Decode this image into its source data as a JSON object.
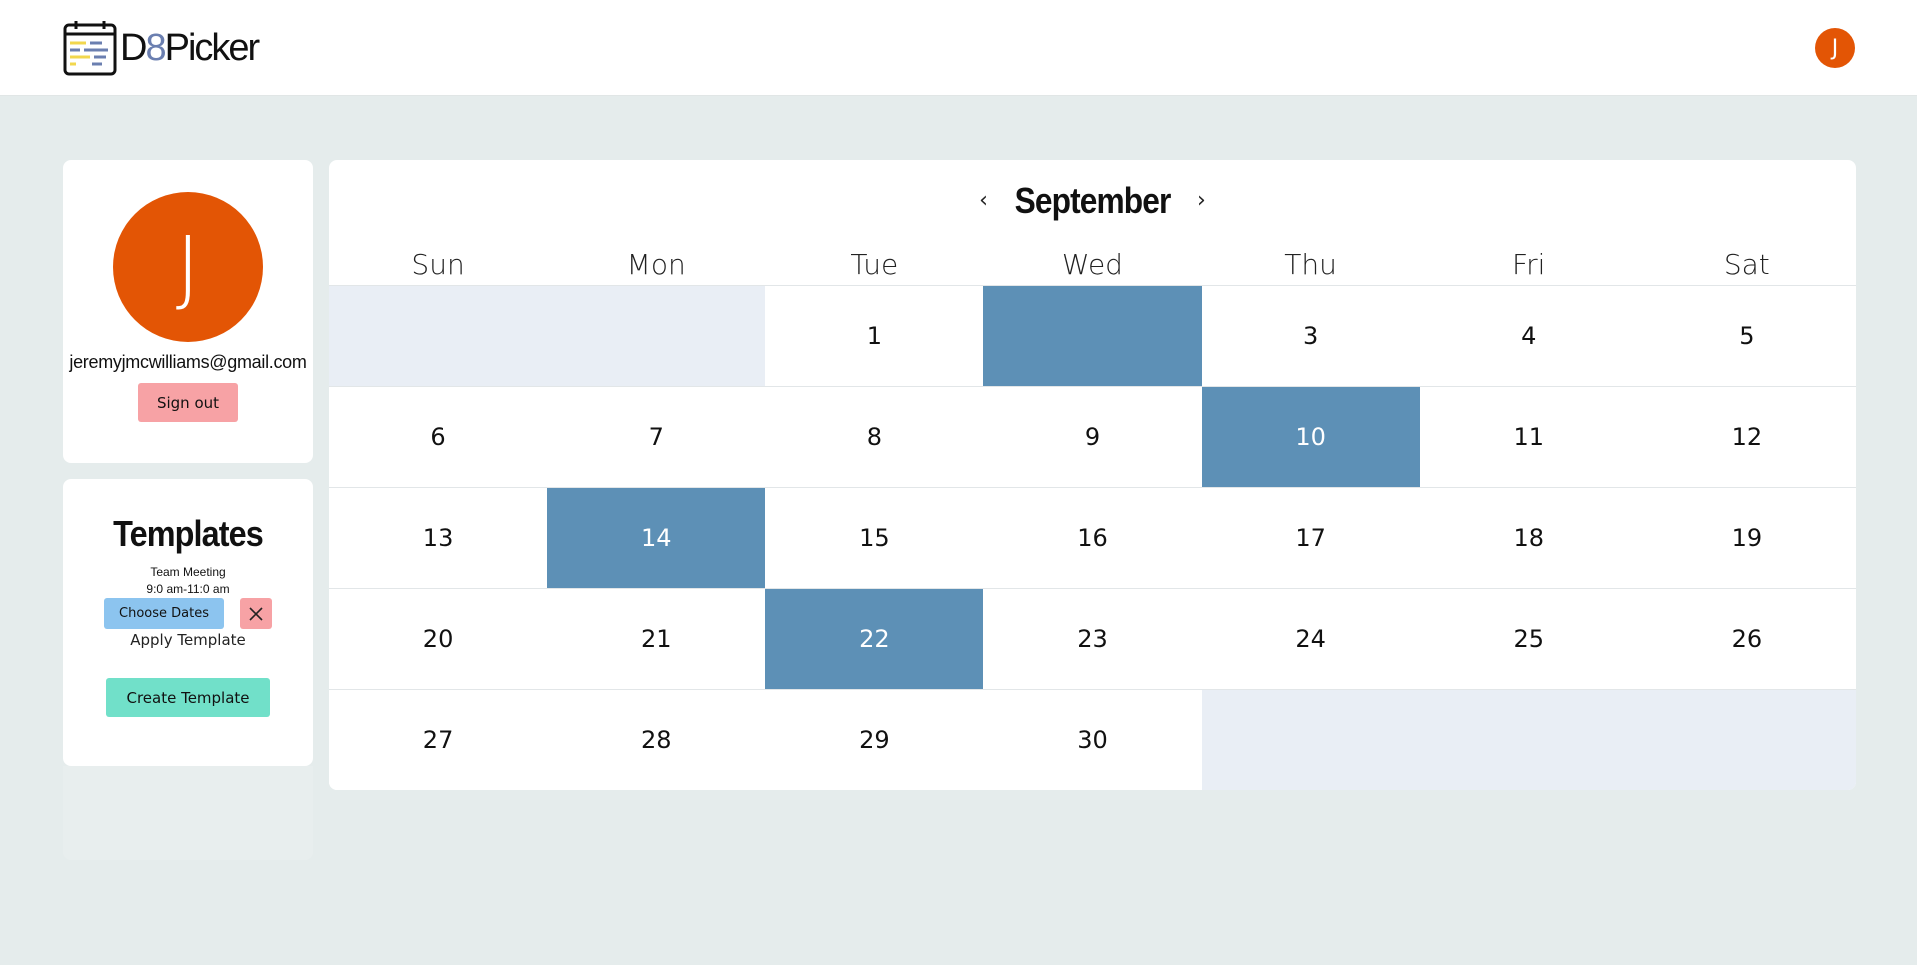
{
  "header": {
    "logo_prefix": "D",
    "logo_eight": "8",
    "logo_suffix": "Picker",
    "avatar_initial": "J"
  },
  "profile": {
    "avatar_initial": "J",
    "email": "jeremyjmcwilliams@gmail.com",
    "sign_out_label": "Sign out"
  },
  "templates": {
    "title": "Templates",
    "items": [
      {
        "name": "Team Meeting",
        "time": "9:0 am-11:0 am",
        "choose_label": "Choose Dates"
      }
    ],
    "apply_label": "Apply Template",
    "create_label": "Create Template"
  },
  "calendar": {
    "month": "September",
    "weekdays": [
      "Sun",
      "Mon",
      "Tue",
      "Wed",
      "Thu",
      "Fri",
      "Sat"
    ],
    "leading_empty": 2,
    "days_in_month": 30,
    "selected_days": [
      2,
      10,
      14,
      22
    ],
    "hidden_label_days": [
      2
    ]
  },
  "colors": {
    "accent_orange": "#e35505",
    "selected_blue": "#5d90b6",
    "empty_cell": "#e9eef5",
    "sign_out_pink": "#f7a2a5",
    "choose_blue": "#8cc4ef",
    "create_teal": "#71e0c9",
    "background": "#e5ecec"
  }
}
